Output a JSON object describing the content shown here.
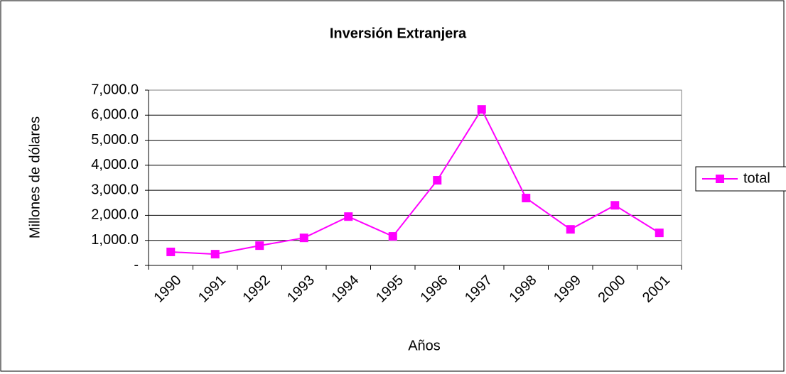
{
  "chart_data": {
    "type": "line",
    "title": "Inversión Extranjera",
    "x_label": "Años",
    "y_label": "Millones de dólares",
    "categories": [
      "1990",
      "1991",
      "1992",
      "1993",
      "1994",
      "1995",
      "1996",
      "1997",
      "1998",
      "1999",
      "2000",
      "2001"
    ],
    "series": [
      {
        "name": "total",
        "color": "#ff00ff",
        "values": [
          540,
          450,
          790,
          1100,
          1950,
          1160,
          3400,
          6230,
          2690,
          1440,
          2400,
          1300
        ]
      }
    ],
    "ylim": [
      0,
      7000
    ],
    "yticks": [
      {
        "value": 0,
        "label": "-"
      },
      {
        "value": 1000,
        "label": "1,000.0"
      },
      {
        "value": 2000,
        "label": "2,000.0"
      },
      {
        "value": 3000,
        "label": "3,000.0"
      },
      {
        "value": 4000,
        "label": "4,000.0"
      },
      {
        "value": 5000,
        "label": "5,000.0"
      },
      {
        "value": 6000,
        "label": "6,000.0"
      },
      {
        "value": 7000,
        "label": "7,000.0"
      }
    ],
    "grid": true,
    "legend": "right"
  }
}
